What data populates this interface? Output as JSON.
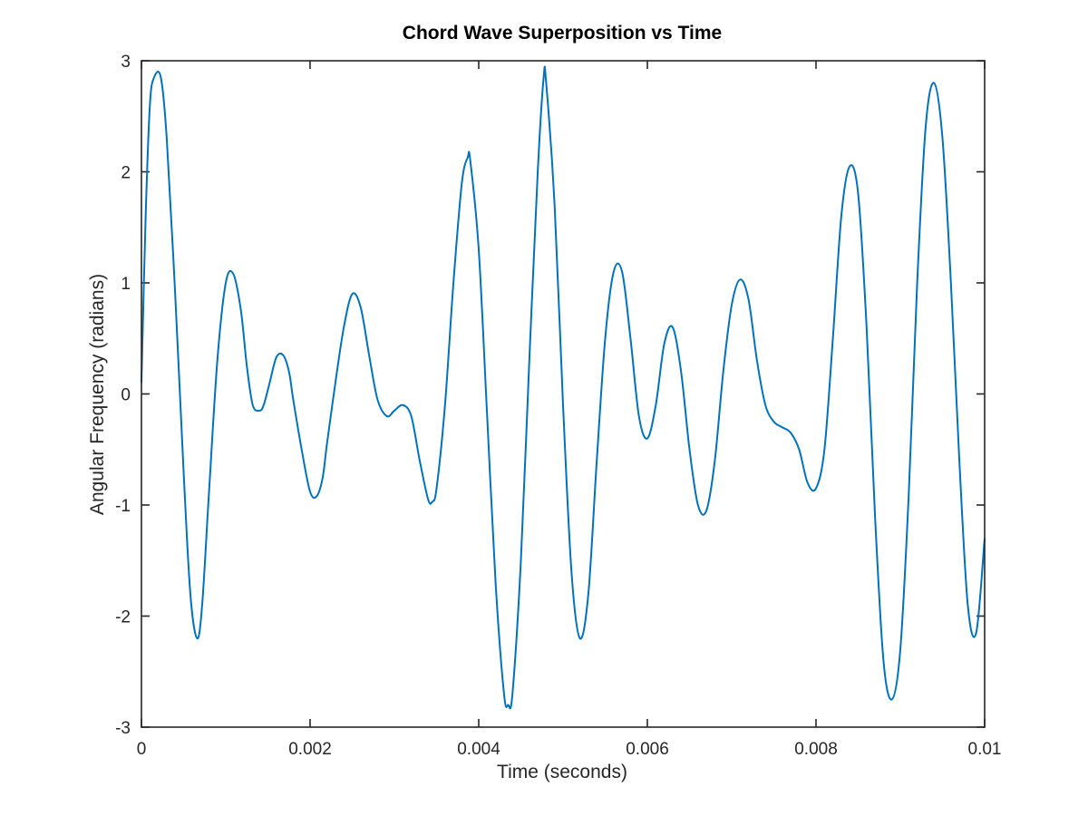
{
  "chart_data": {
    "type": "line",
    "title": "Chord Wave Superposition vs Time",
    "xlabel": "Time (seconds)",
    "ylabel": "Angular Frequency (radians)",
    "xlim": [
      0,
      0.01
    ],
    "ylim": [
      -3,
      3
    ],
    "xticks": [
      0,
      0.002,
      0.004,
      0.006,
      0.008,
      0.01
    ],
    "xtick_labels": [
      "0",
      "0.002",
      "0.004",
      "0.006",
      "0.008",
      "0.01"
    ],
    "yticks": [
      -3,
      -2,
      -1,
      0,
      1,
      2,
      3
    ],
    "ytick_labels": [
      "-3",
      "-2",
      "-1",
      "0",
      "1",
      "2",
      "3"
    ],
    "grid": false,
    "line_color": "#0072BD",
    "series": [
      {
        "x": [
          0,
          5e-05,
          0.0001,
          0.00015,
          0.00023,
          0.0003,
          0.0004,
          0.0005,
          0.00058,
          0.00066,
          0.00072,
          0.0008,
          0.0009,
          0.001,
          0.00109,
          0.00118,
          0.00125,
          0.00132,
          0.0014,
          0.00145,
          0.00152,
          0.0016,
          0.00168,
          0.00175,
          0.0018,
          0.0019,
          0.002,
          0.00208,
          0.00215,
          0.0022,
          0.0023,
          0.0024,
          0.0025,
          0.0026,
          0.0027,
          0.0028,
          0.00291,
          0.003,
          0.0031,
          0.0032,
          0.0033,
          0.0034,
          0.00345,
          0.0035,
          0.0036,
          0.0037,
          0.0038,
          0.00387,
          0.0039,
          0.004,
          0.0041,
          0.0042,
          0.0043,
          0.00435,
          0.0044,
          0.0045,
          0.0046,
          0.0047,
          0.00477,
          0.0048,
          0.0049,
          0.005,
          0.0051,
          0.0052,
          0.0053,
          0.0054,
          0.0055,
          0.0056,
          0.0057,
          0.0058,
          0.0059,
          0.006,
          0.0061,
          0.0062,
          0.0063,
          0.0064,
          0.0065,
          0.0066,
          0.0067,
          0.0068,
          0.0069,
          0.007,
          0.0071,
          0.0072,
          0.0073,
          0.0074,
          0.0075,
          0.0076,
          0.0077,
          0.0078,
          0.0079,
          0.008,
          0.0081,
          0.0082,
          0.0083,
          0.0084,
          0.0085,
          0.0086,
          0.0087,
          0.0088,
          0.0089,
          0.009,
          0.0091,
          0.0092,
          0.0093,
          0.0094,
          0.0095,
          0.0096,
          0.0097,
          0.0098,
          0.0099,
          0.01
        ],
        "y": [
          0.1,
          1.6,
          2.6,
          2.85,
          2.85,
          2.3,
          0.9,
          -0.7,
          -1.8,
          -2.2,
          -1.9,
          -0.9,
          0.3,
          1.0,
          1.08,
          0.75,
          0.25,
          -0.1,
          -0.15,
          -0.1,
          0.1,
          0.33,
          0.35,
          0.2,
          -0.05,
          -0.5,
          -0.88,
          -0.92,
          -0.75,
          -0.45,
          0.1,
          0.6,
          0.9,
          0.78,
          0.35,
          -0.05,
          -0.2,
          -0.15,
          -0.1,
          -0.2,
          -0.6,
          -0.95,
          -0.97,
          -0.85,
          -0.1,
          1.0,
          1.9,
          2.13,
          2.1,
          1.3,
          -0.2,
          -1.7,
          -2.7,
          -2.8,
          -2.7,
          -1.5,
          0.3,
          2.0,
          2.85,
          2.8,
          1.7,
          -0.1,
          -1.6,
          -2.2,
          -1.8,
          -0.6,
          0.5,
          1.1,
          1.1,
          0.5,
          -0.2,
          -0.4,
          -0.1,
          0.45,
          0.6,
          0.2,
          -0.5,
          -1.0,
          -1.05,
          -0.6,
          0.2,
          0.8,
          1.03,
          0.85,
          0.3,
          -0.1,
          -0.25,
          -0.3,
          -0.35,
          -0.5,
          -0.8,
          -0.85,
          -0.5,
          0.5,
          1.6,
          2.05,
          1.8,
          0.6,
          -1.1,
          -2.4,
          -2.75,
          -2.3,
          -0.9,
          1.0,
          2.4,
          2.8,
          2.3,
          1.0,
          -0.6,
          -1.9,
          -2.15,
          -1.3
        ]
      }
    ]
  }
}
